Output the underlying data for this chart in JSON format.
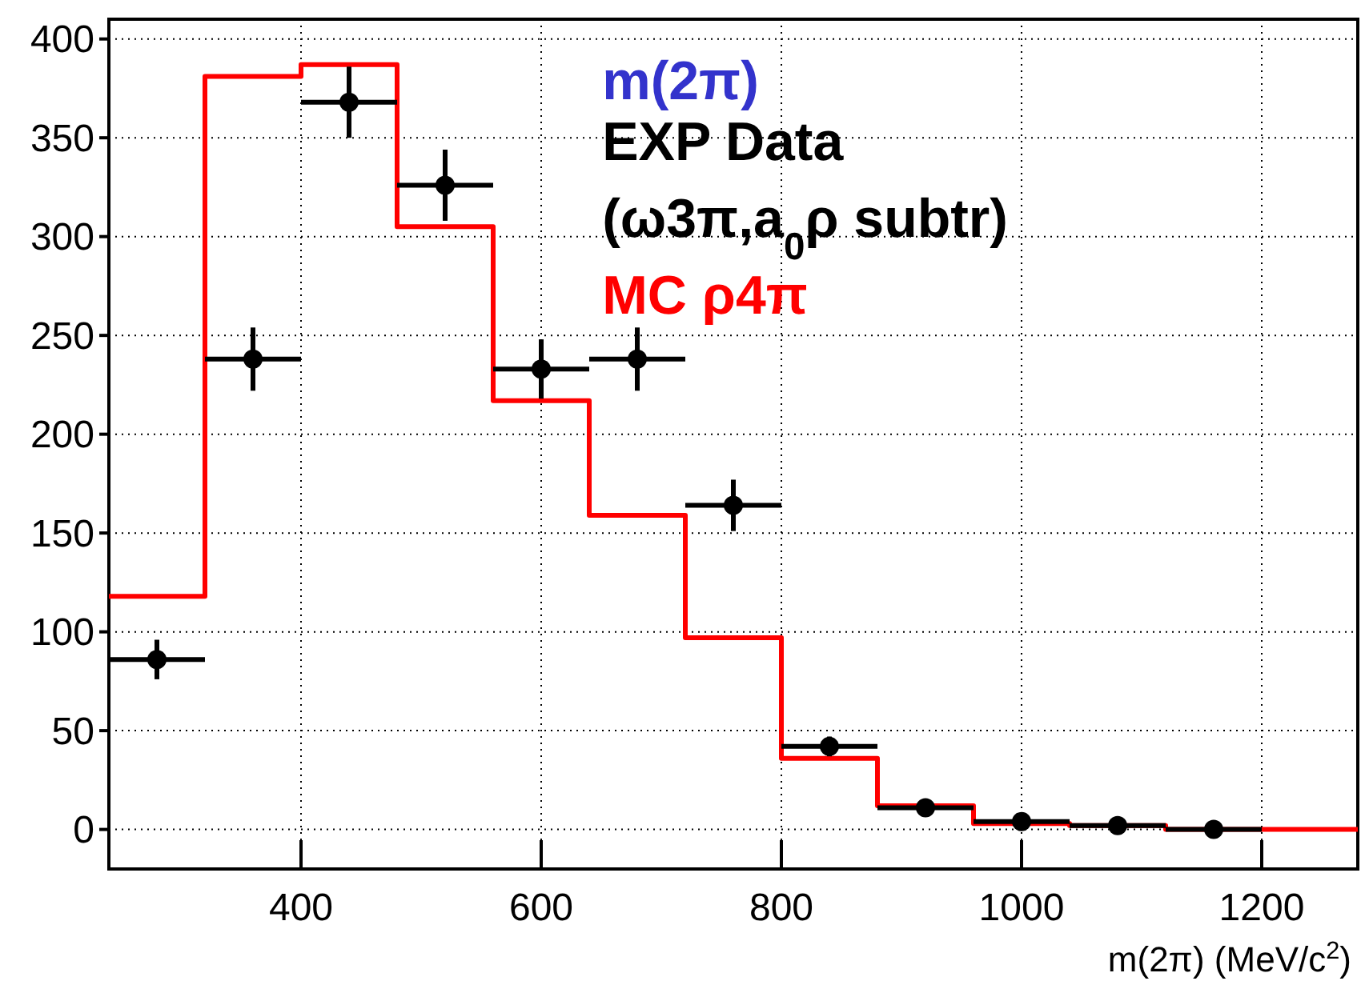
{
  "chart_data": {
    "type": "scatter",
    "title": "m(2π)",
    "xlabel": "m(2π) (MeV/c$^{2}$)",
    "xlim": [
      240,
      1280
    ],
    "ylim": [
      -20,
      410
    ],
    "xticks": [
      400,
      600,
      800,
      1000,
      1200
    ],
    "yticks": [
      0,
      50,
      100,
      150,
      200,
      250,
      300,
      350,
      400
    ],
    "grid": true,
    "legend": "top right",
    "series": [
      {
        "name": "MC ρ4π",
        "type": "step",
        "color": "#ff0000",
        "x": [
          240,
          320,
          400,
          480,
          560,
          640,
          720,
          800,
          880,
          960,
          1040,
          1120,
          1200,
          1280
        ],
        "values": [
          118,
          381,
          387,
          305,
          217,
          159,
          97,
          36,
          12,
          3,
          2,
          0,
          0,
          0
        ]
      },
      {
        "name": "EXP Data\n(ω3π,a$_{0}$ρ subtr)",
        "color": "#000000",
        "marker": "circle",
        "x": [
          280,
          360,
          440,
          520,
          600,
          680,
          760,
          840,
          920,
          1000,
          1080,
          1160
        ],
        "values": [
          86,
          238,
          368,
          326,
          233,
          238,
          164,
          42,
          11,
          4,
          2,
          0
        ],
        "errors": [
          10,
          16,
          18,
          18,
          15,
          16,
          13,
          5,
          null,
          null,
          null,
          null
        ],
        "xerrors": [
          40,
          40,
          40,
          40,
          40,
          40,
          40,
          40,
          40,
          40,
          40,
          40
        ]
      }
    ]
  }
}
